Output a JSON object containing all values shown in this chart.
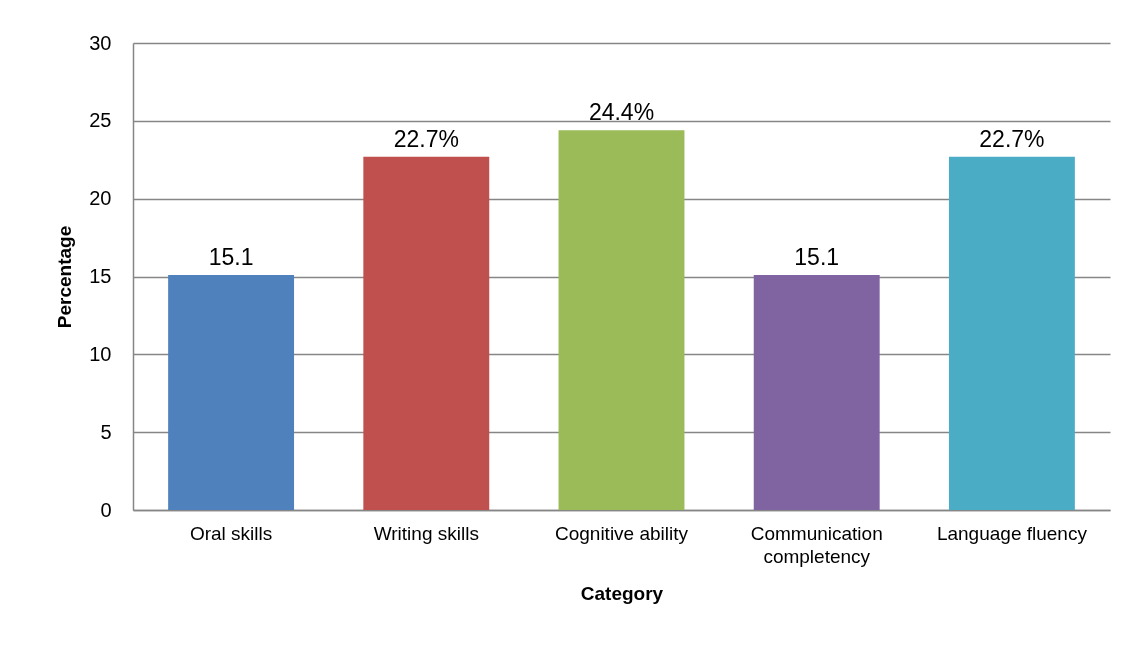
{
  "chart_data": {
    "type": "bar",
    "xlabel": "Category",
    "ylabel": "Percentage",
    "categories": [
      "Oral skills",
      "Writing skills",
      "Cognitive ability",
      "Communication completency",
      "Language fluency"
    ],
    "values": [
      15.1,
      22.7,
      24.4,
      15.1,
      22.7
    ],
    "value_labels": [
      "15.1",
      "22.7%",
      "24.4%",
      "15.1",
      "22.7%"
    ],
    "colors": [
      "#4f81bd",
      "#c0504d",
      "#9bbb59",
      "#8064a2",
      "#4bacc6"
    ],
    "ylim": [
      0,
      30
    ],
    "yticks": [
      0,
      5,
      10,
      15,
      20,
      25,
      30
    ],
    "grid": "y"
  }
}
